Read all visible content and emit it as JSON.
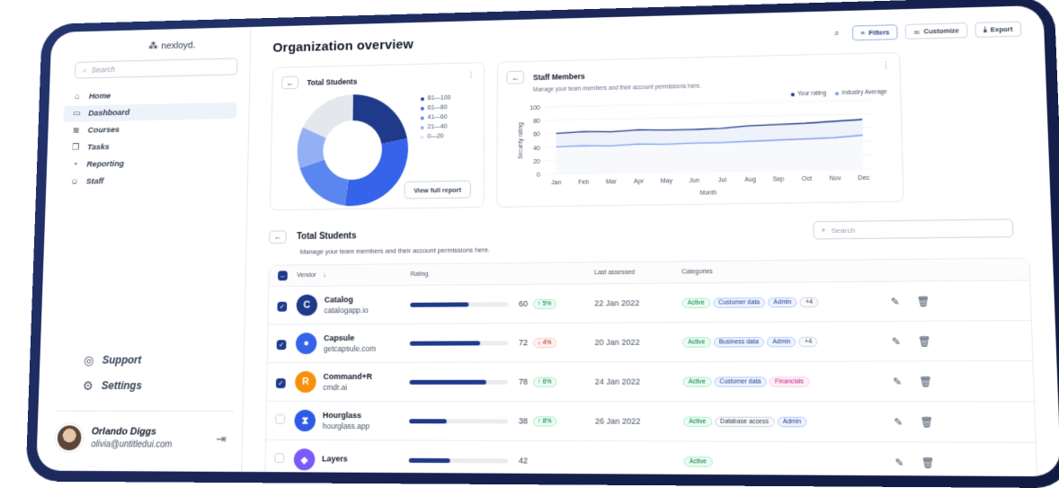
{
  "brand": {
    "name": "nexloyd."
  },
  "sidebar": {
    "search_placeholder": "Search",
    "items": [
      {
        "label": "Home",
        "icon": "home-icon",
        "glyph": "⌂"
      },
      {
        "label": "Dashboard",
        "icon": "dashboard-icon",
        "glyph": "▭"
      },
      {
        "label": "Courses",
        "icon": "layers-icon",
        "glyph": "≋"
      },
      {
        "label": "Tasks",
        "icon": "tasks-icon",
        "glyph": "❐"
      },
      {
        "label": "Reporting",
        "icon": "pie-chart-icon",
        "glyph": "◔"
      },
      {
        "label": "Staff",
        "icon": "users-icon",
        "glyph": "☺"
      }
    ],
    "bottom_items": [
      {
        "label": "Support",
        "icon": "support-icon",
        "glyph": "◎"
      },
      {
        "label": "Settings",
        "icon": "gear-icon",
        "glyph": "⚙"
      }
    ],
    "user": {
      "name": "Orlando Diggs",
      "email": "olivia@untitledui.com"
    }
  },
  "header": {
    "title": "Organization overview",
    "filters_label": "Filters",
    "customize_label": "Customize",
    "export_label": "Export"
  },
  "students_card": {
    "title": "Total Students",
    "view_button": "View full report"
  },
  "staff_card": {
    "title": "Staff Members",
    "subtitle": "Manage your team members and their account permissions here."
  },
  "chart_data": [
    {
      "type": "pie",
      "title": "Total Students",
      "categories": [
        "81—100",
        "61—80",
        "41—60",
        "21—40",
        "0—20"
      ],
      "values": [
        22,
        30,
        18,
        12,
        18
      ],
      "colors": [
        "#1f3a8a",
        "#3563e9",
        "#5b86f0",
        "#93b0f4",
        "#e4e7ec"
      ],
      "legend": "right"
    },
    {
      "type": "line",
      "categories": [
        "Jan",
        "Feb",
        "Mar",
        "Apr",
        "May",
        "Jun",
        "Jul",
        "Aug",
        "Sep",
        "Oct",
        "Nov",
        "Dec"
      ],
      "series": [
        {
          "name": "Your rating",
          "color": "#1f3a8a",
          "values": [
            60,
            62,
            61,
            63,
            62,
            62,
            63,
            66,
            67,
            68,
            70,
            72
          ]
        },
        {
          "name": "Industry Average",
          "color": "#7f9ff0",
          "values": [
            40,
            41,
            40,
            42,
            41,
            42,
            42,
            43,
            44,
            45,
            46,
            49
          ]
        }
      ],
      "xlabel": "Month",
      "ylabel": "Security rating",
      "ylim": [
        0,
        100
      ],
      "yticks": [
        0,
        20,
        40,
        60,
        80,
        100
      ],
      "legend": "top-right"
    }
  ],
  "table": {
    "title": "Total Students",
    "subtitle": "Manage your team members and their account permissions here.",
    "search_placeholder": "Search",
    "headers": {
      "vendor": "Vendor",
      "rating": "Rating",
      "last": "Last assessed",
      "cats": "Categories"
    },
    "rows": [
      {
        "checked": true,
        "name": "Catalog",
        "domain": "catalogapp.io",
        "logo_color": "#1f3a8a",
        "logo_glyph": "C",
        "rating": 60,
        "trend": "↑ 5%",
        "trend_dir": "up",
        "date": "22 Jan 2022",
        "tags": [
          {
            "t": "Active",
            "k": "active"
          },
          {
            "t": "Customer data",
            "k": "blue"
          },
          {
            "t": "Admin",
            "k": "blue"
          },
          {
            "t": "+4",
            "k": ""
          }
        ]
      },
      {
        "checked": true,
        "name": "Capsule",
        "domain": "getcapsule.com",
        "logo_color": "#3563e9",
        "logo_glyph": "●",
        "rating": 72,
        "trend": "↓ 4%",
        "trend_dir": "down",
        "date": "20 Jan 2022",
        "tags": [
          {
            "t": "Active",
            "k": "active"
          },
          {
            "t": "Business data",
            "k": "blue"
          },
          {
            "t": "Admin",
            "k": "blue"
          },
          {
            "t": "+4",
            "k": ""
          }
        ]
      },
      {
        "checked": true,
        "name": "Command+R",
        "domain": "cmdr.ai",
        "logo_color": "#f79009",
        "logo_glyph": "R",
        "rating": 78,
        "trend": "↑ 6%",
        "trend_dir": "up",
        "date": "24 Jan 2022",
        "tags": [
          {
            "t": "Active",
            "k": "active"
          },
          {
            "t": "Customer data",
            "k": "blue"
          },
          {
            "t": "Financials",
            "k": "pink"
          }
        ]
      },
      {
        "checked": false,
        "name": "Hourglass",
        "domain": "hourglass.app",
        "logo_color": "#2e5ae6",
        "logo_glyph": "⧗",
        "rating": 38,
        "trend": "↑ 8%",
        "trend_dir": "up",
        "date": "26 Jan 2022",
        "tags": [
          {
            "t": "Active",
            "k": "active"
          },
          {
            "t": "Database access",
            "k": ""
          },
          {
            "t": "Admin",
            "k": "blue"
          }
        ]
      },
      {
        "checked": false,
        "name": "Layers",
        "domain": "",
        "logo_color": "#7a5af8",
        "logo_glyph": "◆",
        "rating": 42,
        "trend": "",
        "trend_dir": "down",
        "date": "",
        "tags": [
          {
            "t": "Active",
            "k": "active"
          }
        ]
      }
    ]
  }
}
